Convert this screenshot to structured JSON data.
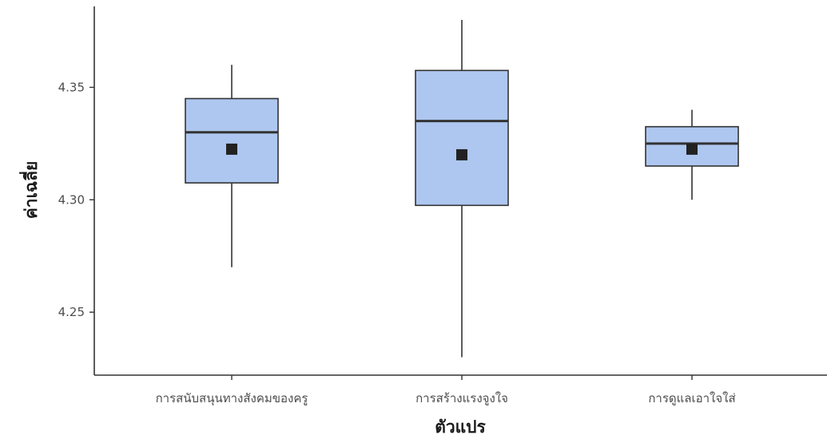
{
  "chart_data": {
    "type": "box",
    "xlabel": "ตัวแปร",
    "ylabel": "ค่าเฉลี่ย",
    "ylim": [
      4.222,
      4.386
    ],
    "yticks": [
      4.25,
      4.3,
      4.35
    ],
    "ytick_labels": [
      "4.25",
      "4.30",
      "4.35"
    ],
    "categories": [
      "การสนับสนุนทางสังคมของครู",
      "การสร้างแรงจูงใจ",
      "การดูแลเอาใจใส่"
    ],
    "boxes": [
      {
        "min": 4.27,
        "q1": 4.3075,
        "median": 4.33,
        "q3": 4.345,
        "max": 4.36,
        "mean": 4.3225
      },
      {
        "min": 4.23,
        "q1": 4.2975,
        "median": 4.335,
        "q3": 4.3575,
        "max": 4.38,
        "mean": 4.32
      },
      {
        "min": 4.3,
        "q1": 4.315,
        "median": 4.325,
        "q3": 4.3325,
        "max": 4.34,
        "mean": 4.3225
      }
    ],
    "colors": {
      "box_fill": "#aec7f0",
      "line": "#333333",
      "mean_marker": "#222222"
    },
    "grid": false,
    "legend": "none"
  }
}
